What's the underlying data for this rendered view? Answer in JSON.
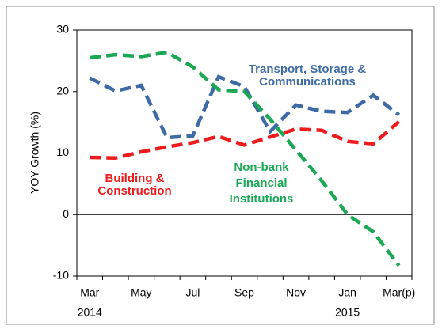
{
  "chart_data": {
    "type": "line",
    "y_axis_label": "YOY Growth (%)",
    "categories": [
      "Mar",
      null,
      "May",
      null,
      "Jul",
      null,
      "Sep",
      null,
      "Nov",
      null,
      "Jan",
      null,
      "Mar(p)"
    ],
    "x_sublabels": [
      "2014",
      null,
      null,
      null,
      null,
      null,
      null,
      null,
      null,
      null,
      "2015",
      null,
      null
    ],
    "ylim": [
      -10,
      30
    ],
    "yticks": [
      -10,
      0,
      10,
      20,
      30
    ],
    "zero_line": true,
    "series": [
      {
        "name": "Transport, Storage & Communications",
        "color": "#3e6aa6",
        "values": [
          22.2,
          20.1,
          21,
          12.5,
          12.8,
          22.4,
          20.8,
          13.5,
          17.8,
          16.8,
          16.6,
          19.4,
          16.2
        ],
        "label_lines": [
          "Transport, Storage &",
          "Communications"
        ]
      },
      {
        "name": "Non-bank Financial Institutions",
        "color": "#1aa855",
        "values": [
          25.5,
          26.0,
          25.7,
          26.4,
          24,
          20.3,
          20,
          15.5,
          10.5,
          5.5,
          0,
          -2.8,
          -8.3
        ],
        "label_lines": [
          "Non-bank",
          "Financial",
          "Institutions"
        ]
      },
      {
        "name": "Building & Construction",
        "color": "#ee1c1c",
        "values": [
          9.3,
          9.2,
          10.2,
          11,
          11.7,
          12.7,
          11.3,
          12.6,
          13.9,
          13.7,
          11.9,
          11.5,
          15.1
        ],
        "label_lines": [
          "Building &",
          "Construction"
        ]
      }
    ]
  }
}
